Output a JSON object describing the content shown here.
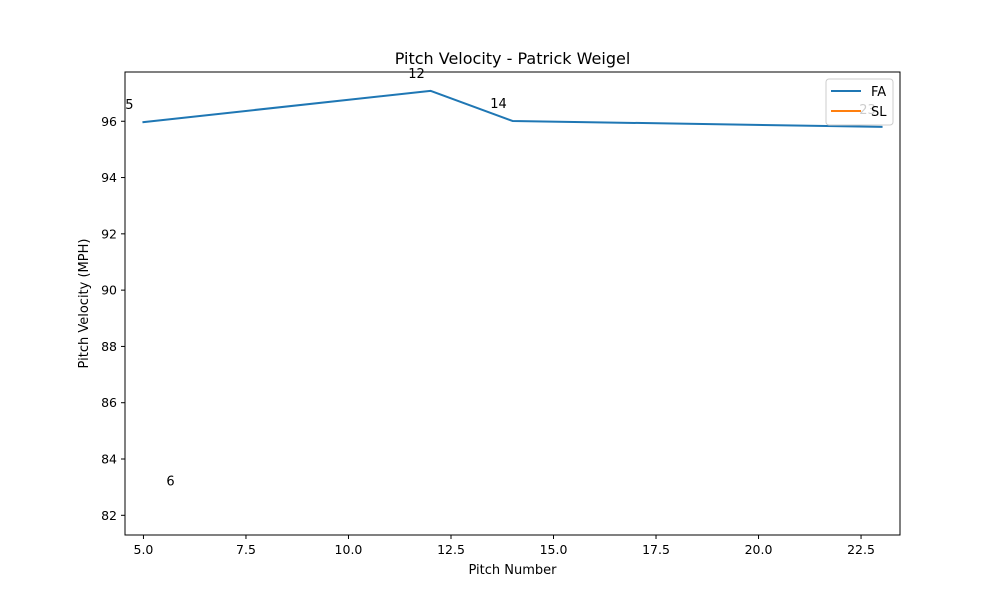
{
  "chart_data": {
    "type": "line",
    "title": "Pitch Velocity - Patrick Weigel",
    "xlabel": "Pitch Number",
    "ylabel": "Pitch Velocity (MPH)",
    "xlim": [
      4.55,
      23.45
    ],
    "ylim": [
      81.3,
      97.75
    ],
    "xticks": [
      5.0,
      7.5,
      10.0,
      12.5,
      15.0,
      17.5,
      20.0,
      22.5
    ],
    "xtick_labels": [
      "5.0",
      "7.5",
      "10.0",
      "12.5",
      "15.0",
      "17.5",
      "20.0",
      "22.5"
    ],
    "yticks": [
      82,
      84,
      86,
      88,
      90,
      92,
      94,
      96
    ],
    "ytick_labels": [
      "82",
      "84",
      "86",
      "88",
      "90",
      "92",
      "94",
      "96"
    ],
    "grid": false,
    "legend_position": "top-right",
    "series": [
      {
        "name": "FA",
        "color": "#1f77b4",
        "x": [
          5,
          12,
          14,
          23
        ],
        "y": [
          95.97,
          97.08,
          96.01,
          95.8
        ]
      },
      {
        "name": "SL",
        "color": "#ff7f0e",
        "x": [
          6
        ],
        "y": [
          82.6
        ]
      }
    ],
    "annotations": [
      {
        "text": "5",
        "x": 5,
        "y": 95.97
      },
      {
        "text": "12",
        "x": 12,
        "y": 97.08
      },
      {
        "text": "14",
        "x": 14,
        "y": 96.01
      },
      {
        "text": "23",
        "x": 23,
        "y": 95.8
      },
      {
        "text": "6",
        "x": 6,
        "y": 82.6
      }
    ]
  }
}
